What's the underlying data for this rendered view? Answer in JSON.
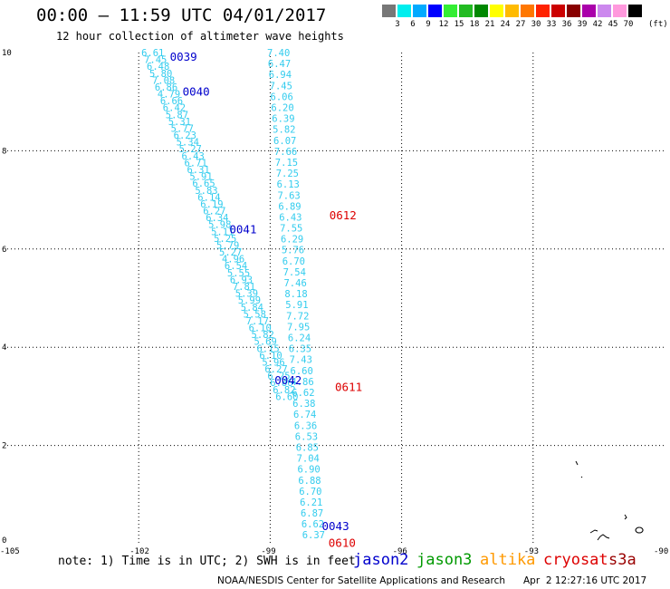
{
  "header": {
    "title": "00:00 – 11:59 UTC 04/01/2017",
    "subtitle": "12 hour collection of altimeter wave heights"
  },
  "legend": {
    "colors": [
      "#777777",
      "#00eeee",
      "#00aaff",
      "#0000ff",
      "#33ee33",
      "#22bb22",
      "#008800",
      "#ffff00",
      "#ffbb00",
      "#ff7700",
      "#ff2200",
      "#cc0000",
      "#880000",
      "#aa00aa",
      "#cc88ee",
      "#ff99dd",
      "#000000"
    ],
    "labels": [
      "3",
      "6",
      "9",
      "12",
      "15",
      "18",
      "21",
      "24",
      "27",
      "30",
      "33",
      "36",
      "39",
      "42",
      "45",
      "70"
    ],
    "unit": "(ft)"
  },
  "footer": {
    "note": "note: 1) Time is in UTC; 2) SWH is in feet",
    "satellites": [
      {
        "name": "jason2",
        "color": "#0000cc"
      },
      {
        "name": "jason3",
        "color": "#009900"
      },
      {
        "name": "altika",
        "color": "#ff9900"
      },
      {
        "name": "cryosat",
        "color": "#dd0000"
      },
      {
        "name": "s3a",
        "color": "#990000"
      }
    ],
    "credit": "NOAA/NESDIS Center for Satellite Applications and Research",
    "timestamp": "Apr  2 12:27:16 UTC 2017"
  },
  "chart_data": {
    "type": "scatter",
    "xlim": [
      -105,
      -90
    ],
    "ylim": [
      0,
      10
    ],
    "x_ticks": [
      "-105",
      "-102",
      "-99",
      "-96",
      "-93",
      "-90"
    ],
    "y_ticks": [
      "0",
      "2",
      "4",
      "6",
      "8",
      "10"
    ],
    "grid": true,
    "text_color": "#33ccee",
    "tracks": [
      {
        "name": "track1",
        "x0": -101.94,
        "x1": -98.88,
        "y0": 10,
        "y1": 3.0,
        "values": [
          "6.61",
          "7.45",
          "6.48",
          "5.80",
          "7.08",
          "6.86",
          "4.79",
          "6.66",
          "6.42",
          "5.87",
          "5.31",
          "5.77",
          "6.23",
          "5.34",
          "5.27",
          "6.43",
          "6.71",
          "6.31",
          "5.91",
          "6.65",
          "5.83",
          "6.14",
          "6.19",
          "6.27",
          "6.34",
          "5.98",
          "5.11",
          "5.25",
          "5.79",
          "5.27",
          "4.96",
          "6.54",
          "5.55",
          "6.93",
          "7.81",
          "5.39",
          "5.99",
          "5.84",
          "5.58",
          "7.17",
          "6.10",
          "5.82",
          "5.69",
          "6.15",
          "6.10",
          "5.96",
          "6.27",
          "6.25",
          "6.86",
          "6.82",
          "6.60"
        ]
      },
      {
        "name": "track2",
        "x0": -99.07,
        "x1": -98.27,
        "y0": 10,
        "y1": 0.18,
        "values": [
          "7.40",
          "6.47",
          "6.94",
          "7.45",
          "6.06",
          "6.20",
          "6.39",
          "5.82",
          "6.07",
          "7.66",
          "7.15",
          "7.25",
          "6.13",
          "7.63",
          "6.89",
          "6.43",
          "7.55",
          "6.29",
          "5.76",
          "6.70",
          "7.54",
          "7.46",
          "8.18",
          "5.91",
          "7.72",
          "7.95",
          "6.24",
          "6.35",
          "7.43",
          "6.60",
          "4.86",
          "6.62",
          "6.38",
          "6.74",
          "6.36",
          "6.53",
          "6.85",
          "7.04",
          "6.90",
          "6.88",
          "6.70",
          "6.21",
          "6.87",
          "6.62",
          "6.37"
        ]
      }
    ],
    "time_labels": [
      {
        "text": "0039",
        "x": -101.29,
        "y": 9.93,
        "color": "#0000cc"
      },
      {
        "text": "0040",
        "x": -101.0,
        "y": 9.22,
        "color": "#0000cc"
      },
      {
        "text": "0041",
        "x": -99.93,
        "y": 6.41,
        "color": "#0000cc"
      },
      {
        "text": "0042",
        "x": -98.9,
        "y": 3.34,
        "color": "#0000cc"
      },
      {
        "text": "0043",
        "x": -97.82,
        "y": 0.37,
        "color": "#0000cc"
      },
      {
        "text": "0612",
        "x": -97.65,
        "y": 6.7,
        "color": "#dd0000"
      },
      {
        "text": "0611",
        "x": -97.52,
        "y": 3.2,
        "color": "#dd0000"
      },
      {
        "text": "0610",
        "x": -97.67,
        "y": 0.03,
        "color": "#dd0000"
      }
    ],
    "coastline": "mexico-coast"
  }
}
